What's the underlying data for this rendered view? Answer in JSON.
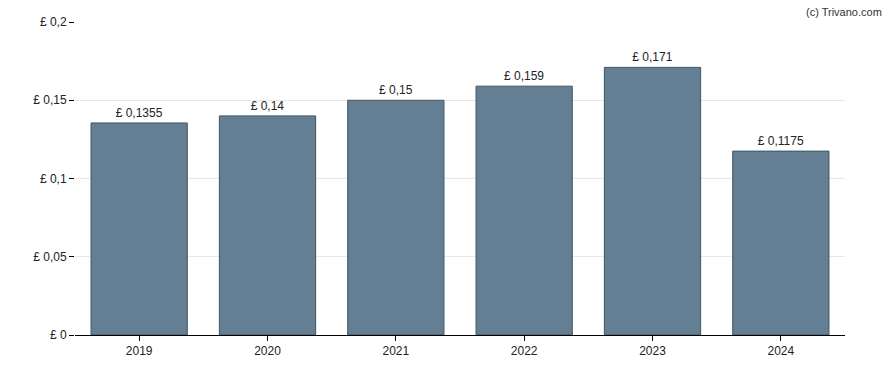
{
  "chart_data": {
    "type": "bar",
    "annotations": [
      "(c) Trivano.com"
    ],
    "categories": [
      "2019",
      "2020",
      "2021",
      "2022",
      "2023",
      "2024"
    ],
    "values": [
      0.1355,
      0.14,
      0.15,
      0.159,
      0.171,
      0.1175
    ],
    "value_labels": [
      "£ 0,1355",
      "£ 0,14",
      "£ 0,15",
      "£ 0,159",
      "£ 0,171",
      "£ 0,1175"
    ],
    "data_labels": true,
    "color": "#647f94",
    "ylim": [
      0,
      0.2
    ],
    "yticks": [
      {
        "value": 0,
        "label": "£ 0"
      },
      {
        "value": 0.05,
        "label": "£ 0,05"
      },
      {
        "value": 0.1,
        "label": "£ 0,1"
      },
      {
        "value": 0.15,
        "label": "£ 0,15"
      },
      {
        "value": 0.2,
        "label": "£ 0,2"
      }
    ],
    "grid": true
  }
}
